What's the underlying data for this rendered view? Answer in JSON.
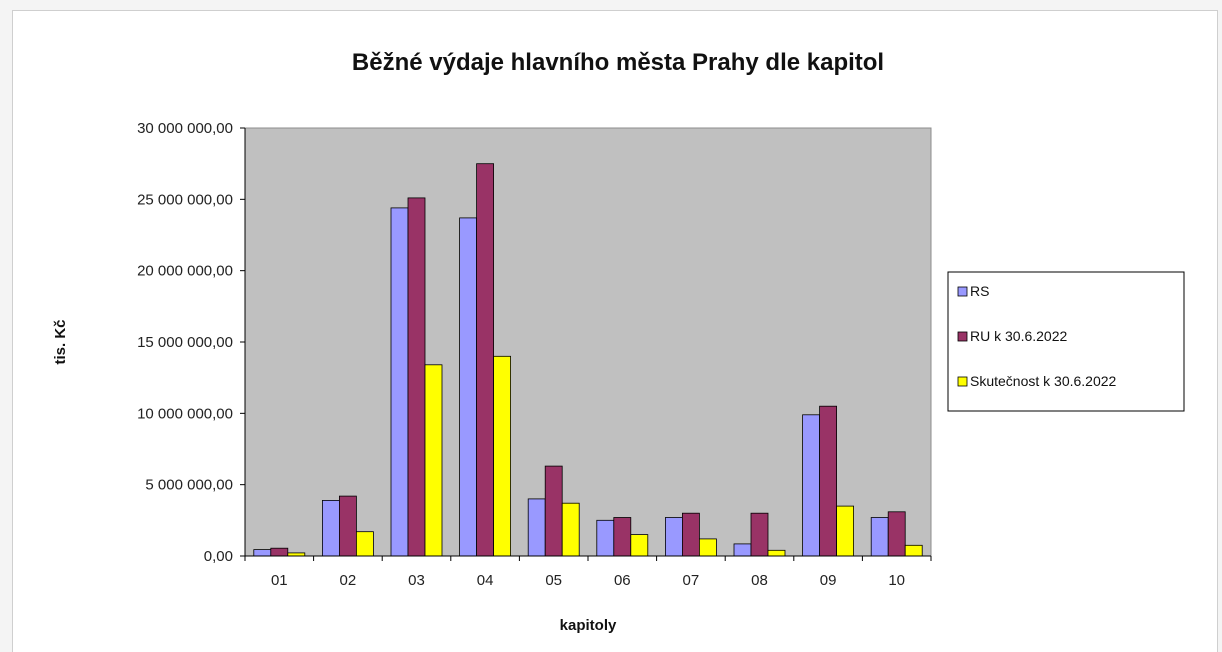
{
  "chart_data": {
    "type": "bar",
    "title": "Běžné výdaje hlavního města Prahy dle kapitol",
    "xlabel": "kapitoly",
    "ylabel": "tis. Kč",
    "categories": [
      "01",
      "02",
      "03",
      "04",
      "05",
      "06",
      "07",
      "08",
      "09",
      "10"
    ],
    "ylim": [
      0,
      30000000
    ],
    "ytick_labels": [
      "0,00",
      "5 000 000,00",
      "10 000 000,00",
      "15 000 000,00",
      "20 000 000,00",
      "25 000 000,00",
      "30 000 000,00"
    ],
    "ytick_values": [
      0,
      5000000,
      10000000,
      15000000,
      20000000,
      25000000,
      30000000
    ],
    "grid": false,
    "legend_position": "right",
    "series": [
      {
        "name": "RS",
        "color": "#9999ff",
        "values": [
          450000,
          3900000,
          24400000,
          23700000,
          4000000,
          2500000,
          2700000,
          850000,
          9900000,
          2700000
        ]
      },
      {
        "name": "RU k 30.6.2022",
        "color": "#993366",
        "values": [
          550000,
          4200000,
          25100000,
          27500000,
          6300000,
          2700000,
          3000000,
          3000000,
          10500000,
          3100000
        ]
      },
      {
        "name": "Skutečnost k 30.6.2022",
        "color": "#ffff00",
        "values": [
          220000,
          1700000,
          13400000,
          14000000,
          3700000,
          1500000,
          1200000,
          400000,
          3500000,
          750000
        ]
      }
    ]
  }
}
